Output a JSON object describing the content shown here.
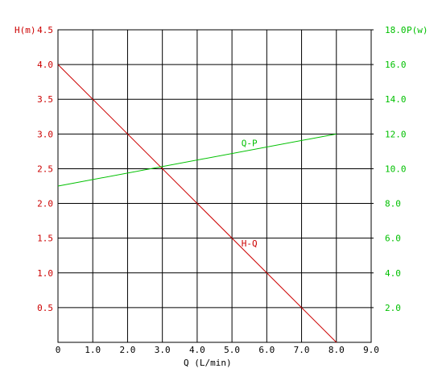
{
  "chart_data": {
    "type": "line",
    "x_label": "Q (L/min)",
    "y_label": "H(m)",
    "y2_label": "P(w)",
    "xlim": [
      0,
      9
    ],
    "ylim": [
      0,
      4.5
    ],
    "y2lim": [
      0,
      18
    ],
    "xticks": [
      0,
      {
        "value": 1,
        "label": "1.0"
      },
      {
        "value": 2,
        "label": "2.0"
      },
      {
        "value": 3,
        "label": "3.0"
      },
      {
        "value": 4,
        "label": "4.0"
      },
      {
        "value": 5,
        "label": "5.0"
      },
      {
        "value": 6,
        "label": "6.0"
      },
      {
        "value": 7,
        "label": "7.0"
      },
      {
        "value": 8,
        "label": "8.0"
      },
      {
        "value": 9,
        "label": "9.0"
      }
    ],
    "yticks": [
      0.5,
      {
        "value": 1,
        "label": "1.0"
      },
      1.5,
      {
        "value": 2,
        "label": "2.0"
      },
      2.5,
      {
        "value": 3,
        "label": "3.0"
      },
      3.5,
      {
        "value": 4,
        "label": "4.0"
      },
      4.5
    ],
    "y2ticks": [
      {
        "value": 2,
        "label": "2.0"
      },
      {
        "value": 4,
        "label": "4.0"
      },
      {
        "value": 6,
        "label": "6.0"
      },
      {
        "value": 8,
        "label": "8.0"
      },
      {
        "value": 10,
        "label": "10.0"
      },
      {
        "value": 12,
        "label": "12.0"
      },
      {
        "value": 14,
        "label": "14.0"
      },
      {
        "value": 16,
        "label": "16.0"
      },
      {
        "value": 18,
        "label": "18.0"
      }
    ],
    "grid": true,
    "series": [
      {
        "name": "H-Q",
        "color": "#cc0000",
        "x": [
          0,
          8
        ],
        "values": [
          4.0,
          0
        ]
      },
      {
        "name": "Q-P",
        "color": "#00c000",
        "x": [
          0,
          8
        ],
        "values": [
          9.0,
          12.0
        ],
        "axis": "y2"
      }
    ]
  }
}
